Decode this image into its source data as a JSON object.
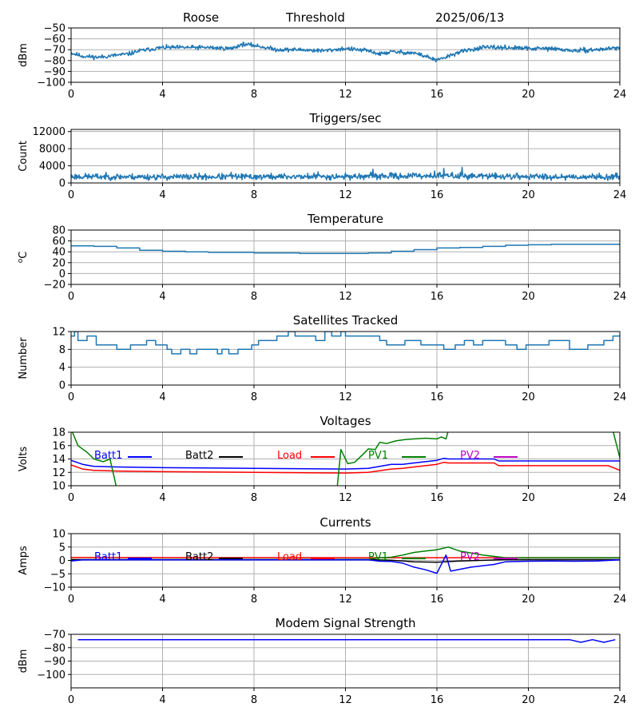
{
  "header": {
    "station": "Roose",
    "mode": "Threshold",
    "date": "2025/06/13"
  },
  "xticks": [
    "0",
    "4",
    "8",
    "12",
    "16",
    "20",
    "24"
  ],
  "colors": {
    "line": "#1f77b4",
    "batt1": "#0000ff",
    "batt2": "#000000",
    "load": "#ff0000",
    "pv1": "#008000",
    "pv2": "#bf00bf",
    "grid": "#b0b0b0"
  },
  "chart_data": [
    {
      "id": "signal",
      "type": "line",
      "title": "",
      "ylabel": "dBm",
      "xlim": [
        0,
        24
      ],
      "ylim": [
        -100,
        -50
      ],
      "yticks": [
        -100,
        -90,
        -80,
        -70,
        -60,
        -50
      ],
      "ytick_labels": [
        "−100",
        "−90",
        "−80",
        "−70",
        "−60",
        "−50"
      ],
      "series": [
        {
          "color": "line",
          "noise": 1.2,
          "seed": 11,
          "x": [
            0,
            0.5,
            1.2,
            2,
            2.5,
            3,
            4,
            5,
            6,
            7,
            7.5,
            8,
            9,
            10,
            11,
            12,
            13,
            13.5,
            14,
            15,
            15.5,
            16,
            16.5,
            17,
            18,
            19,
            20,
            21,
            22,
            23,
            24
          ],
          "y": [
            -73,
            -76,
            -77,
            -75,
            -74,
            -71,
            -68,
            -68,
            -68,
            -69,
            -65,
            -66,
            -70,
            -70,
            -71,
            -69,
            -71,
            -74,
            -72,
            -73,
            -76,
            -80,
            -76,
            -72,
            -68,
            -68,
            -69,
            -69,
            -71,
            -70,
            -68
          ]
        }
      ]
    },
    {
      "id": "triggers",
      "type": "line",
      "title": "Triggers/sec",
      "ylabel": "Count",
      "xlim": [
        0,
        24
      ],
      "ylim": [
        0,
        12500
      ],
      "yticks": [
        0,
        4000,
        8000,
        12000
      ],
      "ytick_labels": [
        "0",
        "4000",
        "8000",
        "12000"
      ],
      "series": [
        {
          "color": "line",
          "noise": 450,
          "seed": 23,
          "spikes": [
            [
              13.2,
              3200
            ],
            [
              15.9,
              2800
            ],
            [
              16.3,
              3400
            ],
            [
              17.1,
              3700
            ],
            [
              10.8,
              2600
            ],
            [
              7.0,
              2500
            ]
          ],
          "x": [
            0,
            4,
            8,
            12,
            16,
            20,
            24
          ],
          "y": [
            1500,
            1400,
            1450,
            1500,
            1700,
            1500,
            1400
          ]
        }
      ]
    },
    {
      "id": "temperature",
      "type": "line",
      "title": "Temperature",
      "ylabel": "°C",
      "ylabel_parts": [
        "o",
        "C"
      ],
      "xlim": [
        0,
        24
      ],
      "ylim": [
        -20,
        80
      ],
      "yticks": [
        -20,
        0,
        20,
        40,
        60,
        80
      ],
      "ytick_labels": [
        "−20",
        "0",
        "20",
        "40",
        "60",
        "80"
      ],
      "series": [
        {
          "color": "line",
          "noise": 0,
          "step": true,
          "x": [
            0,
            1,
            2,
            3,
            4,
            5,
            6,
            8,
            10,
            12,
            13,
            14,
            15,
            16,
            17,
            18,
            19,
            20,
            21,
            22,
            24
          ],
          "y": [
            51,
            50,
            47,
            43,
            41,
            40,
            39,
            38,
            37,
            37,
            38,
            41,
            44,
            47,
            48,
            50,
            52,
            53,
            54,
            54,
            54
          ]
        }
      ]
    },
    {
      "id": "satellites",
      "type": "line",
      "title": "Satellites Tracked",
      "ylabel": "Number",
      "xlim": [
        0,
        24
      ],
      "ylim": [
        0,
        12
      ],
      "yticks": [
        0,
        4,
        8,
        12
      ],
      "ytick_labels": [
        "0",
        "4",
        "8",
        "12"
      ],
      "series": [
        {
          "color": "line",
          "step": true,
          "x": [
            0,
            0.15,
            0.3,
            0.7,
            1.1,
            1.5,
            2.0,
            2.6,
            3.0,
            3.3,
            3.7,
            4.2,
            4.4,
            4.8,
            5.2,
            5.5,
            6.0,
            6.4,
            6.6,
            6.9,
            7.3,
            7.7,
            7.9,
            8.2,
            8.6,
            9.0,
            9.5,
            9.8,
            10.3,
            10.7,
            11.1,
            11.4,
            11.8,
            12.0,
            12.5,
            13.0,
            13.5,
            13.8,
            14.2,
            14.6,
            14.9,
            15.3,
            15.8,
            16.3,
            16.8,
            17.2,
            17.6,
            18.0,
            18.4,
            19.0,
            19.5,
            19.9,
            20.4,
            20.9,
            21.4,
            21.8,
            22.2,
            22.6,
            22.9,
            23.3,
            23.7,
            24
          ],
          "y": [
            11,
            12,
            10,
            11,
            9,
            9,
            8,
            9,
            9,
            10,
            9,
            8,
            7,
            8,
            7,
            8,
            8,
            7,
            8,
            7,
            8,
            8,
            9,
            10,
            10,
            11,
            12,
            11,
            11,
            10,
            12,
            11,
            12,
            11,
            11,
            11,
            10,
            9,
            9,
            10,
            10,
            9,
            9,
            8,
            9,
            10,
            9,
            10,
            10,
            9,
            8,
            9,
            9,
            10,
            10,
            8,
            8,
            9,
            9,
            10,
            11,
            11
          ]
        }
      ]
    },
    {
      "id": "voltages",
      "type": "line",
      "title": "Voltages",
      "ylabel": "Volts",
      "xlim": [
        0,
        24
      ],
      "ylim": [
        10,
        18
      ],
      "yticks": [
        10,
        12,
        14,
        16,
        18
      ],
      "ytick_labels": [
        "10",
        "12",
        "14",
        "16",
        "18"
      ],
      "legend": [
        "Batt1",
        "Batt2",
        "Load",
        "PV1",
        "PV2"
      ],
      "series": [
        {
          "name": "Batt1",
          "color": "batt1",
          "x": [
            0,
            0.5,
            1,
            2,
            4,
            8,
            12,
            13,
            14,
            14.5,
            15,
            16,
            16.3,
            16.5,
            18.5,
            18.7,
            24
          ],
          "y": [
            13.8,
            13.2,
            12.9,
            12.8,
            12.7,
            12.6,
            12.5,
            12.6,
            13.2,
            13.2,
            13.4,
            13.8,
            14.1,
            14.0,
            14.0,
            13.7,
            13.7
          ]
        },
        {
          "name": "Load",
          "color": "load",
          "x": [
            0,
            0.5,
            1,
            2,
            4,
            8,
            12,
            13,
            14,
            14.5,
            15,
            16,
            16.3,
            16.5,
            18.5,
            18.7,
            23.5,
            24
          ],
          "y": [
            13.1,
            12.5,
            12.3,
            12.2,
            12.1,
            12.0,
            11.9,
            12.0,
            12.5,
            12.6,
            12.8,
            13.2,
            13.5,
            13.4,
            13.4,
            13.0,
            13.0,
            12.3
          ]
        },
        {
          "name": "PV1",
          "color": "pv1",
          "x": [
            0,
            0.3,
            0.7,
            1.0,
            1.4,
            1.7,
            2.0,
            2.1,
            11.5,
            11.8,
            12.1,
            12.4,
            12.8,
            13.0,
            13.3,
            13.5,
            13.8,
            14.2,
            14.6,
            15.0,
            15.5,
            16.0,
            16.2,
            16.4,
            16.6,
            23.6,
            24
          ],
          "y": [
            18.5,
            16.0,
            15.0,
            14.0,
            13.6,
            14.0,
            9.5,
            5,
            5,
            15.4,
            13.3,
            13.5,
            14.8,
            15.5,
            15.4,
            16.5,
            16.3,
            16.7,
            16.9,
            17.0,
            17.1,
            17.0,
            17.3,
            17.0,
            19.5,
            19.5,
            14.2
          ]
        }
      ]
    },
    {
      "id": "currents",
      "type": "line",
      "title": "Currents",
      "ylabel": "Amps",
      "xlim": [
        0,
        24
      ],
      "ylim": [
        -10,
        10
      ],
      "yticks": [
        -10,
        -5,
        0,
        5,
        10
      ],
      "ytick_labels": [
        "−10",
        "−5",
        "0",
        "5",
        "10"
      ],
      "legend": [
        "Batt1",
        "Batt2",
        "Load",
        "PV1",
        "PV2"
      ],
      "series": [
        {
          "name": "Load",
          "color": "load",
          "x": [
            0,
            12,
            24
          ],
          "y": [
            1.1,
            1.0,
            1.0
          ]
        },
        {
          "name": "PV1",
          "color": "pv1",
          "x": [
            0,
            13,
            13.5,
            14,
            14.5,
            15,
            15.5,
            16,
            16.5,
            17,
            18,
            19,
            24
          ],
          "y": [
            0.3,
            0.4,
            1.0,
            1.2,
            2.0,
            3.0,
            3.5,
            4.0,
            5.0,
            3.5,
            2.0,
            1.0,
            1.0
          ]
        },
        {
          "name": "Batt2",
          "color": "batt2",
          "x": [
            0,
            13,
            14,
            15,
            16,
            17,
            19,
            24
          ],
          "y": [
            0.3,
            0.3,
            0.1,
            -0.5,
            -0.7,
            -0.2,
            0.3,
            0.3
          ]
        },
        {
          "name": "Batt1",
          "color": "batt1",
          "x": [
            0,
            0.5,
            1,
            13,
            13.5,
            14,
            14.5,
            15,
            15.5,
            16,
            16.4,
            16.6,
            17.5,
            18.5,
            19,
            20,
            21,
            22,
            23,
            24
          ],
          "y": [
            -0.2,
            0.2,
            0.2,
            0.2,
            -0.3,
            -0.4,
            -1.0,
            -2.5,
            -3.5,
            -4.8,
            2.0,
            -4.0,
            -2.5,
            -1.5,
            -0.5,
            -0.3,
            -0.2,
            -0.3,
            -0.2,
            0.2
          ]
        }
      ]
    },
    {
      "id": "modem",
      "type": "line",
      "title": "Modem Signal Strength",
      "ylabel": "dBm",
      "xlim": [
        0,
        24
      ],
      "ylim": [
        -110,
        -70
      ],
      "yticks": [
        -100,
        -90,
        -80,
        -70
      ],
      "ytick_labels": [
        "−100",
        "−90",
        "−80",
        "−70"
      ],
      "series": [
        {
          "color": "batt1",
          "x": [
            0.3,
            21.8,
            22.3,
            22.8,
            23.3,
            23.8
          ],
          "y": [
            -74,
            -74,
            -76,
            -74,
            -76,
            -74
          ]
        }
      ]
    }
  ]
}
